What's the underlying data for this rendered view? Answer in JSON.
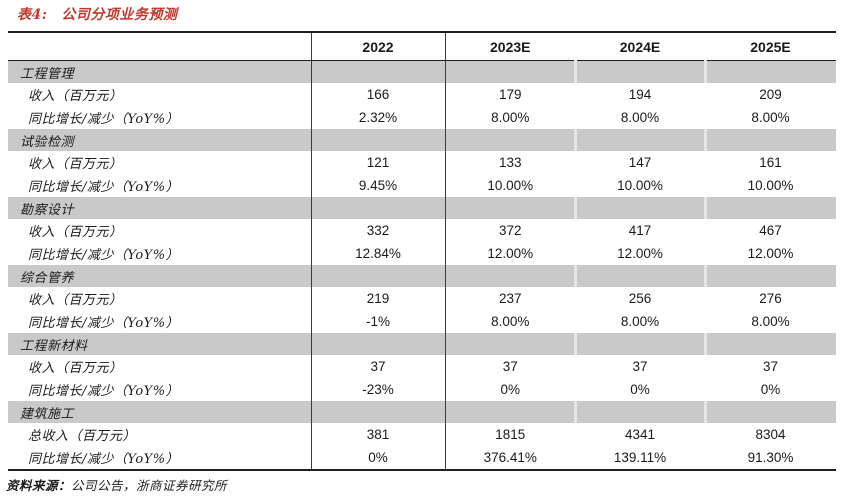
{
  "title": {
    "prefix": "表4:",
    "text": "公司分项业务预测"
  },
  "colors": {
    "accent_red": "#C0392B",
    "band_gray": "#C9C9C9"
  },
  "table": {
    "columns": [
      "2022",
      "2023E",
      "2024E",
      "2025E"
    ],
    "sections": [
      {
        "name": "工程管理",
        "rows": [
          {
            "label": "收入（百万元）",
            "values": [
              "166",
              "179",
              "194",
              "209"
            ]
          },
          {
            "label": "同比增长/减少（YoY%）",
            "values": [
              "2.32%",
              "8.00%",
              "8.00%",
              "8.00%"
            ]
          }
        ]
      },
      {
        "name": "试验检测",
        "rows": [
          {
            "label": "收入（百万元）",
            "values": [
              "121",
              "133",
              "147",
              "161"
            ]
          },
          {
            "label": "同比增长/减少（YoY%）",
            "values": [
              "9.45%",
              "10.00%",
              "10.00%",
              "10.00%"
            ]
          }
        ]
      },
      {
        "name": "勘察设计",
        "rows": [
          {
            "label": "收入（百万元）",
            "values": [
              "332",
              "372",
              "417",
              "467"
            ]
          },
          {
            "label": "同比增长/减少（YoY%）",
            "values": [
              "12.84%",
              "12.00%",
              "12.00%",
              "12.00%"
            ]
          }
        ]
      },
      {
        "name": "综合管养",
        "rows": [
          {
            "label": "收入（百万元）",
            "values": [
              "219",
              "237",
              "256",
              "276"
            ]
          },
          {
            "label": "同比增长/减少（YoY%）",
            "values": [
              "-1%",
              "8.00%",
              "8.00%",
              "8.00%"
            ]
          }
        ]
      },
      {
        "name": "工程新材料",
        "rows": [
          {
            "label": "收入（百万元）",
            "values": [
              "37",
              "37",
              "37",
              "37"
            ]
          },
          {
            "label": "同比增长/减少（YoY%）",
            "values": [
              "-23%",
              "0%",
              "0%",
              "0%"
            ]
          }
        ]
      },
      {
        "name": "建筑施工",
        "rows": [
          {
            "label": "总收入（百万元）",
            "values": [
              "381",
              "1815",
              "4341",
              "8304"
            ]
          },
          {
            "label": "同比增长/减少（YoY%）",
            "values": [
              "0%",
              "376.41%",
              "139.11%",
              "91.30%"
            ]
          }
        ]
      }
    ]
  },
  "footer": {
    "label": "资料来源：",
    "text": "公司公告，浙商证券研究所"
  }
}
